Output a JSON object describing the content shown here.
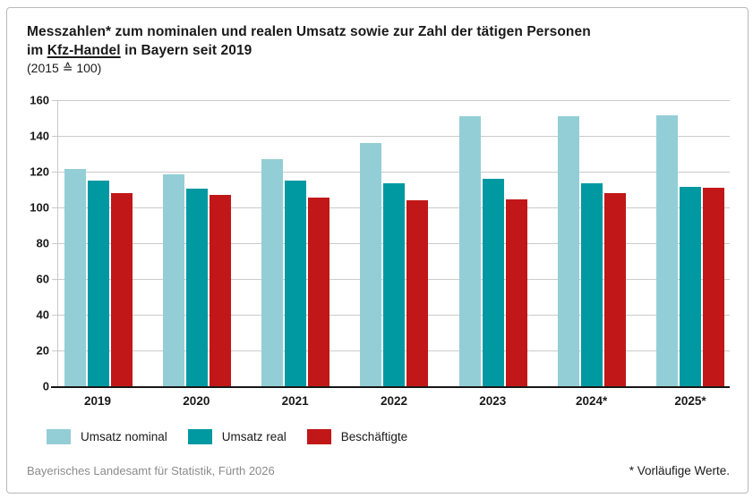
{
  "header": {
    "title_line1": "Messzahlen* zum nominalen und realen Umsatz sowie zur Zahl der tätigen Personen",
    "title_line2_pre": "im ",
    "title_line2_underline": "Kfz-Handel",
    "title_line2_post": " in Bayern seit 2019",
    "subtitle": "(2015 ≙ 100)"
  },
  "chart_data": {
    "type": "bar",
    "title": "Messzahlen zum nominalen und realen Umsatz sowie zur Zahl der tätigen Personen im Kfz-Handel in Bayern seit 2019 (2015 ≙ 100)",
    "categories": [
      "2019",
      "2020",
      "2021",
      "2022",
      "2023",
      "2024*",
      "2025*"
    ],
    "series": [
      {
        "name": "Umsatz nominal",
        "color": "#93ced6",
        "values": [
          121.5,
          118.5,
          127,
          136,
          151,
          151,
          151.5
        ]
      },
      {
        "name": "Umsatz real",
        "color": "#0099a2",
        "values": [
          115,
          110.5,
          115,
          113.5,
          116,
          113.5,
          111.5
        ]
      },
      {
        "name": "Beschäftigte",
        "color": "#c11718",
        "values": [
          108,
          107,
          105.5,
          104,
          104.5,
          108,
          111
        ]
      }
    ],
    "xlabel": "",
    "ylabel": "",
    "ylim": [
      0,
      160
    ],
    "ytick_step": 20,
    "grid": true,
    "legend_position": "bottom",
    "gridline_color": "#cbcbcb",
    "baseline_color": "#161616"
  },
  "footer": {
    "source": "Bayerisches Landesamt für Statistik, Fürth 2026",
    "note": "* Vorläufige Werte."
  }
}
